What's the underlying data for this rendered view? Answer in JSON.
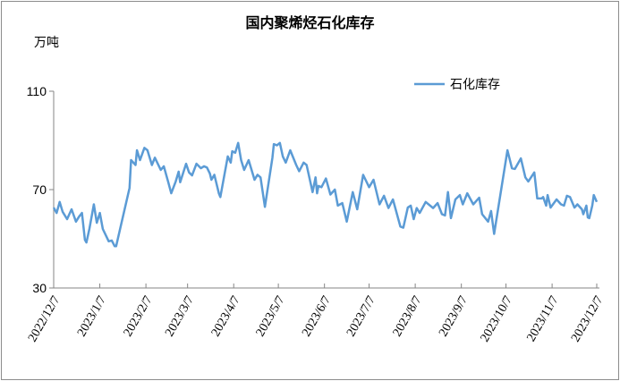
{
  "chart_data": {
    "type": "line",
    "title": "国内聚烯烃石化库存",
    "ylabel": "万吨",
    "xlabel": "",
    "ylim": [
      30,
      110
    ],
    "yticks": [
      30,
      70,
      110
    ],
    "xlim": [
      "2022-12-07",
      "2023-12-07"
    ],
    "xticks": [
      "2022/12/7",
      "2023/1/7",
      "2023/2/7",
      "2023/3/7",
      "2023/4/7",
      "2023/5/7",
      "2023/6/7",
      "2023/7/7",
      "2023/8/7",
      "2023/9/7",
      "2023/10/7",
      "2023/11/7",
      "2023/12/7"
    ],
    "grid": false,
    "legend": "top-right",
    "series": [
      {
        "name": "石化库存",
        "color": "#5b9bd5",
        "points": [
          [
            "2022-12-07",
            62.7
          ],
          [
            "2022-12-09",
            60.5
          ],
          [
            "2022-12-11",
            65
          ],
          [
            "2022-12-13",
            61
          ],
          [
            "2022-12-16",
            58
          ],
          [
            "2022-12-19",
            62
          ],
          [
            "2022-12-22",
            57
          ],
          [
            "2022-12-24",
            59
          ],
          [
            "2022-12-26",
            60.5
          ],
          [
            "2022-12-28",
            49.6
          ],
          [
            "2022-12-29",
            48.5
          ],
          [
            "2022-12-31",
            54
          ],
          [
            "2023-01-03",
            64
          ],
          [
            "2023-01-05",
            56.5
          ],
          [
            "2023-01-07",
            60.5
          ],
          [
            "2023-01-09",
            54
          ],
          [
            "2023-01-13",
            49
          ],
          [
            "2023-01-15",
            49.3
          ],
          [
            "2023-01-17",
            47
          ],
          [
            "2023-01-18",
            47
          ],
          [
            "2023-01-27",
            70.7
          ],
          [
            "2023-01-28",
            82
          ],
          [
            "2023-01-31",
            80
          ],
          [
            "2023-02-01",
            86
          ],
          [
            "2023-02-03",
            82
          ],
          [
            "2023-02-06",
            87
          ],
          [
            "2023-02-08",
            86
          ],
          [
            "2023-02-11",
            80
          ],
          [
            "2023-02-13",
            83
          ],
          [
            "2023-02-17",
            78
          ],
          [
            "2023-02-19",
            79.5
          ],
          [
            "2023-02-22",
            73
          ],
          [
            "2023-02-24",
            68.5
          ],
          [
            "2023-02-27",
            73.3
          ],
          [
            "2023-03-01",
            77.3
          ],
          [
            "2023-03-02",
            73
          ],
          [
            "2023-03-06",
            80.5
          ],
          [
            "2023-03-08",
            77
          ],
          [
            "2023-03-10",
            75.8
          ],
          [
            "2023-03-13",
            80.5
          ],
          [
            "2023-03-16",
            78.7
          ],
          [
            "2023-03-18",
            79.5
          ],
          [
            "2023-03-20",
            79
          ],
          [
            "2023-03-22",
            76.5
          ],
          [
            "2023-03-23",
            74
          ],
          [
            "2023-03-25",
            76
          ],
          [
            "2023-03-28",
            68.5
          ],
          [
            "2023-03-29",
            67
          ],
          [
            "2023-04-03",
            83.5
          ],
          [
            "2023-04-05",
            81
          ],
          [
            "2023-04-06",
            85.6
          ],
          [
            "2023-04-08",
            85
          ],
          [
            "2023-04-10",
            89
          ],
          [
            "2023-04-12",
            82
          ],
          [
            "2023-04-14",
            78
          ],
          [
            "2023-04-17",
            82
          ],
          [
            "2023-04-21",
            74
          ],
          [
            "2023-04-23",
            76
          ],
          [
            "2023-04-25",
            75
          ],
          [
            "2023-04-28",
            63
          ],
          [
            "2023-05-03",
            83
          ],
          [
            "2023-05-04",
            88.5
          ],
          [
            "2023-05-06",
            88
          ],
          [
            "2023-05-08",
            89
          ],
          [
            "2023-05-10",
            83.5
          ],
          [
            "2023-05-12",
            81
          ],
          [
            "2023-05-15",
            86
          ],
          [
            "2023-05-19",
            80
          ],
          [
            "2023-05-21",
            77.5
          ],
          [
            "2023-05-24",
            81
          ],
          [
            "2023-05-26",
            80
          ],
          [
            "2023-05-30",
            69
          ],
          [
            "2023-06-01",
            75
          ],
          [
            "2023-06-02",
            68.5
          ],
          [
            "2023-06-03",
            71.5
          ],
          [
            "2023-06-05",
            71
          ],
          [
            "2023-06-08",
            74.5
          ],
          [
            "2023-06-11",
            68
          ],
          [
            "2023-06-14",
            70
          ],
          [
            "2023-06-16",
            63.5
          ],
          [
            "2023-06-19",
            64.5
          ],
          [
            "2023-06-22",
            57
          ],
          [
            "2023-06-26",
            69
          ],
          [
            "2023-06-29",
            62
          ],
          [
            "2023-07-03",
            76
          ],
          [
            "2023-07-07",
            71
          ],
          [
            "2023-07-10",
            74
          ],
          [
            "2023-07-14",
            64
          ],
          [
            "2023-07-17",
            67.5
          ],
          [
            "2023-07-20",
            62.5
          ],
          [
            "2023-07-23",
            66
          ],
          [
            "2023-07-28",
            55
          ],
          [
            "2023-07-30",
            54.5
          ],
          [
            "2023-08-02",
            62.7
          ],
          [
            "2023-08-04",
            63.5
          ],
          [
            "2023-08-06",
            58
          ],
          [
            "2023-08-08",
            62.5
          ],
          [
            "2023-08-10",
            60.5
          ],
          [
            "2023-08-14",
            65
          ],
          [
            "2023-08-19",
            62.5
          ],
          [
            "2023-08-22",
            64.5
          ],
          [
            "2023-08-25",
            60
          ],
          [
            "2023-08-27",
            59.5
          ],
          [
            "2023-08-29",
            69
          ],
          [
            "2023-08-31",
            58.4
          ],
          [
            "2023-09-03",
            66
          ],
          [
            "2023-09-06",
            67.8
          ],
          [
            "2023-09-08",
            64
          ],
          [
            "2023-09-11",
            68.5
          ],
          [
            "2023-09-15",
            64
          ],
          [
            "2023-09-19",
            66.7
          ],
          [
            "2023-09-21",
            60
          ],
          [
            "2023-09-25",
            57
          ],
          [
            "2023-09-27",
            61.3
          ],
          [
            "2023-09-29",
            52
          ],
          [
            "2023-10-08",
            86
          ],
          [
            "2023-10-11",
            78.7
          ],
          [
            "2023-10-13",
            78.4
          ],
          [
            "2023-10-17",
            82.7
          ],
          [
            "2023-10-20",
            75
          ],
          [
            "2023-10-22",
            73.3
          ],
          [
            "2023-10-26",
            77
          ],
          [
            "2023-10-28",
            66.4
          ],
          [
            "2023-10-31",
            66.4
          ],
          [
            "2023-11-01",
            67
          ],
          [
            "2023-11-03",
            63.5
          ],
          [
            "2023-11-04",
            67.8
          ],
          [
            "2023-11-06",
            62.7
          ],
          [
            "2023-11-10",
            66
          ],
          [
            "2023-11-13",
            64
          ],
          [
            "2023-11-15",
            63.5
          ],
          [
            "2023-11-17",
            67.5
          ],
          [
            "2023-11-19",
            67
          ],
          [
            "2023-11-22",
            62.7
          ],
          [
            "2023-11-24",
            64
          ],
          [
            "2023-11-27",
            62
          ],
          [
            "2023-11-28",
            60
          ],
          [
            "2023-11-30",
            63.5
          ],
          [
            "2023-12-01",
            58.7
          ],
          [
            "2023-12-02",
            58.4
          ],
          [
            "2023-12-04",
            63.5
          ],
          [
            "2023-12-05",
            67.8
          ],
          [
            "2023-12-07",
            65
          ]
        ]
      }
    ]
  }
}
